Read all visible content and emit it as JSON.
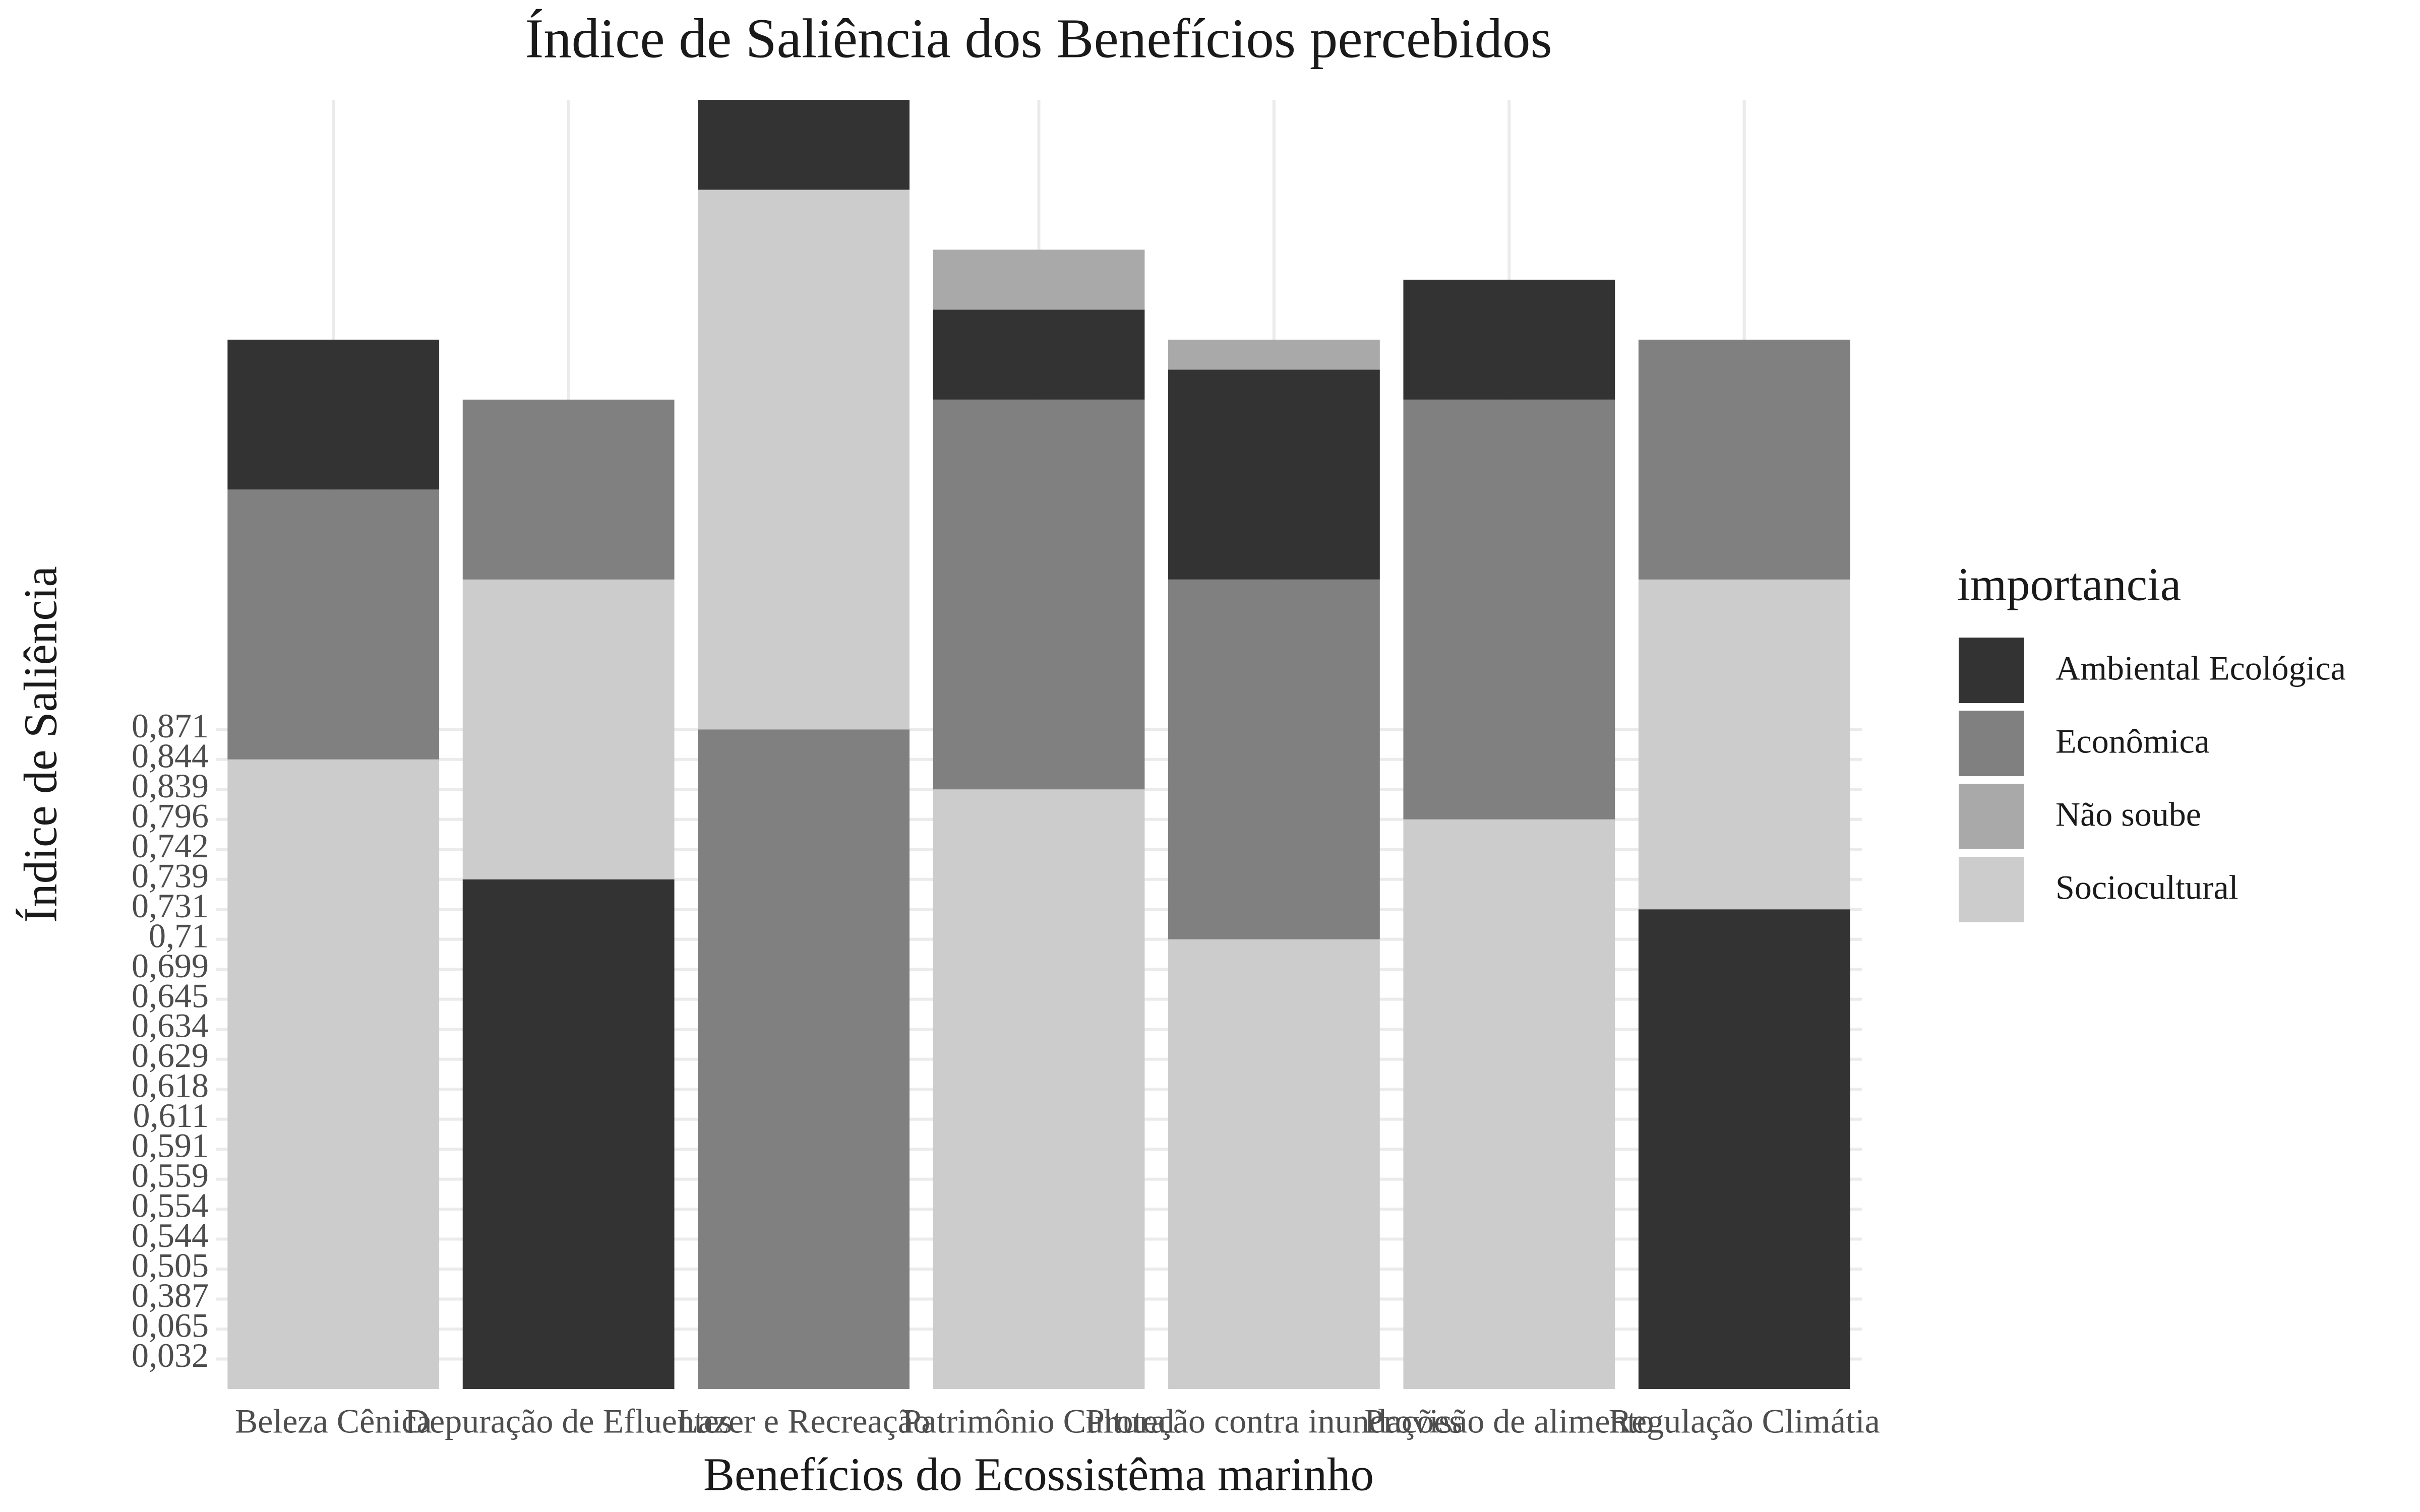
{
  "chart_data": {
    "type": "bar",
    "stacked": true,
    "title": "Índice de Saliência dos Benefícios percebidos",
    "x_label": "Benefícios do Ecossistêma marinho",
    "y_label": "Índice de Saliência",
    "legend_title": "importancia",
    "categories": [
      "Beleza Cênica",
      "Depuração de Efluentes",
      "Lazer e Recreação",
      "Patrimônio Cultural",
      "Proteção contra inundações",
      "Provisão de alimento",
      "Regulação Climátia"
    ],
    "series": [
      {
        "name": "Ambiental Ecológica",
        "color": "#333333",
        "values": [
          5,
          17,
          3,
          3,
          7,
          4,
          16
        ]
      },
      {
        "name": "Econômica",
        "color": "#808080",
        "values": [
          9,
          6,
          22,
          13,
          12,
          14,
          8
        ]
      },
      {
        "name": "Não soube",
        "color": "#a9a9a9",
        "values": [
          null,
          null,
          null,
          2,
          1,
          null,
          null
        ]
      },
      {
        "name": "Sociocultural",
        "color": "#cccccc",
        "values": [
          21,
          10,
          18,
          20,
          15,
          19,
          11
        ]
      }
    ],
    "stack_order": [
      [
        3,
        1,
        0
      ],
      [
        0,
        3,
        1
      ],
      [
        1,
        3,
        0
      ],
      [
        3,
        1,
        0,
        2
      ],
      [
        3,
        1,
        0,
        2
      ],
      [
        3,
        1,
        0
      ],
      [
        0,
        3,
        1
      ]
    ],
    "ylim": [
      0,
      43
    ],
    "yticks": [
      {
        "value": 1,
        "label": "0,032"
      },
      {
        "value": 2,
        "label": "0,065"
      },
      {
        "value": 3,
        "label": "0,387"
      },
      {
        "value": 4,
        "label": "0,505"
      },
      {
        "value": 5,
        "label": "0,544"
      },
      {
        "value": 6,
        "label": "0,554"
      },
      {
        "value": 7,
        "label": "0,559"
      },
      {
        "value": 8,
        "label": "0,591"
      },
      {
        "value": 9,
        "label": "0,611"
      },
      {
        "value": 10,
        "label": "0,618"
      },
      {
        "value": 11,
        "label": "0,629"
      },
      {
        "value": 12,
        "label": "0,634"
      },
      {
        "value": 13,
        "label": "0,645"
      },
      {
        "value": 14,
        "label": "0,699"
      },
      {
        "value": 15,
        "label": "0,71"
      },
      {
        "value": 16,
        "label": "0,731"
      },
      {
        "value": 17,
        "label": "0,739"
      },
      {
        "value": 18,
        "label": "0,742"
      },
      {
        "value": 19,
        "label": "0,796"
      },
      {
        "value": 20,
        "label": "0,839"
      },
      {
        "value": 21,
        "label": "0,844"
      },
      {
        "value": 22,
        "label": "0,871"
      }
    ],
    "grid": true
  }
}
